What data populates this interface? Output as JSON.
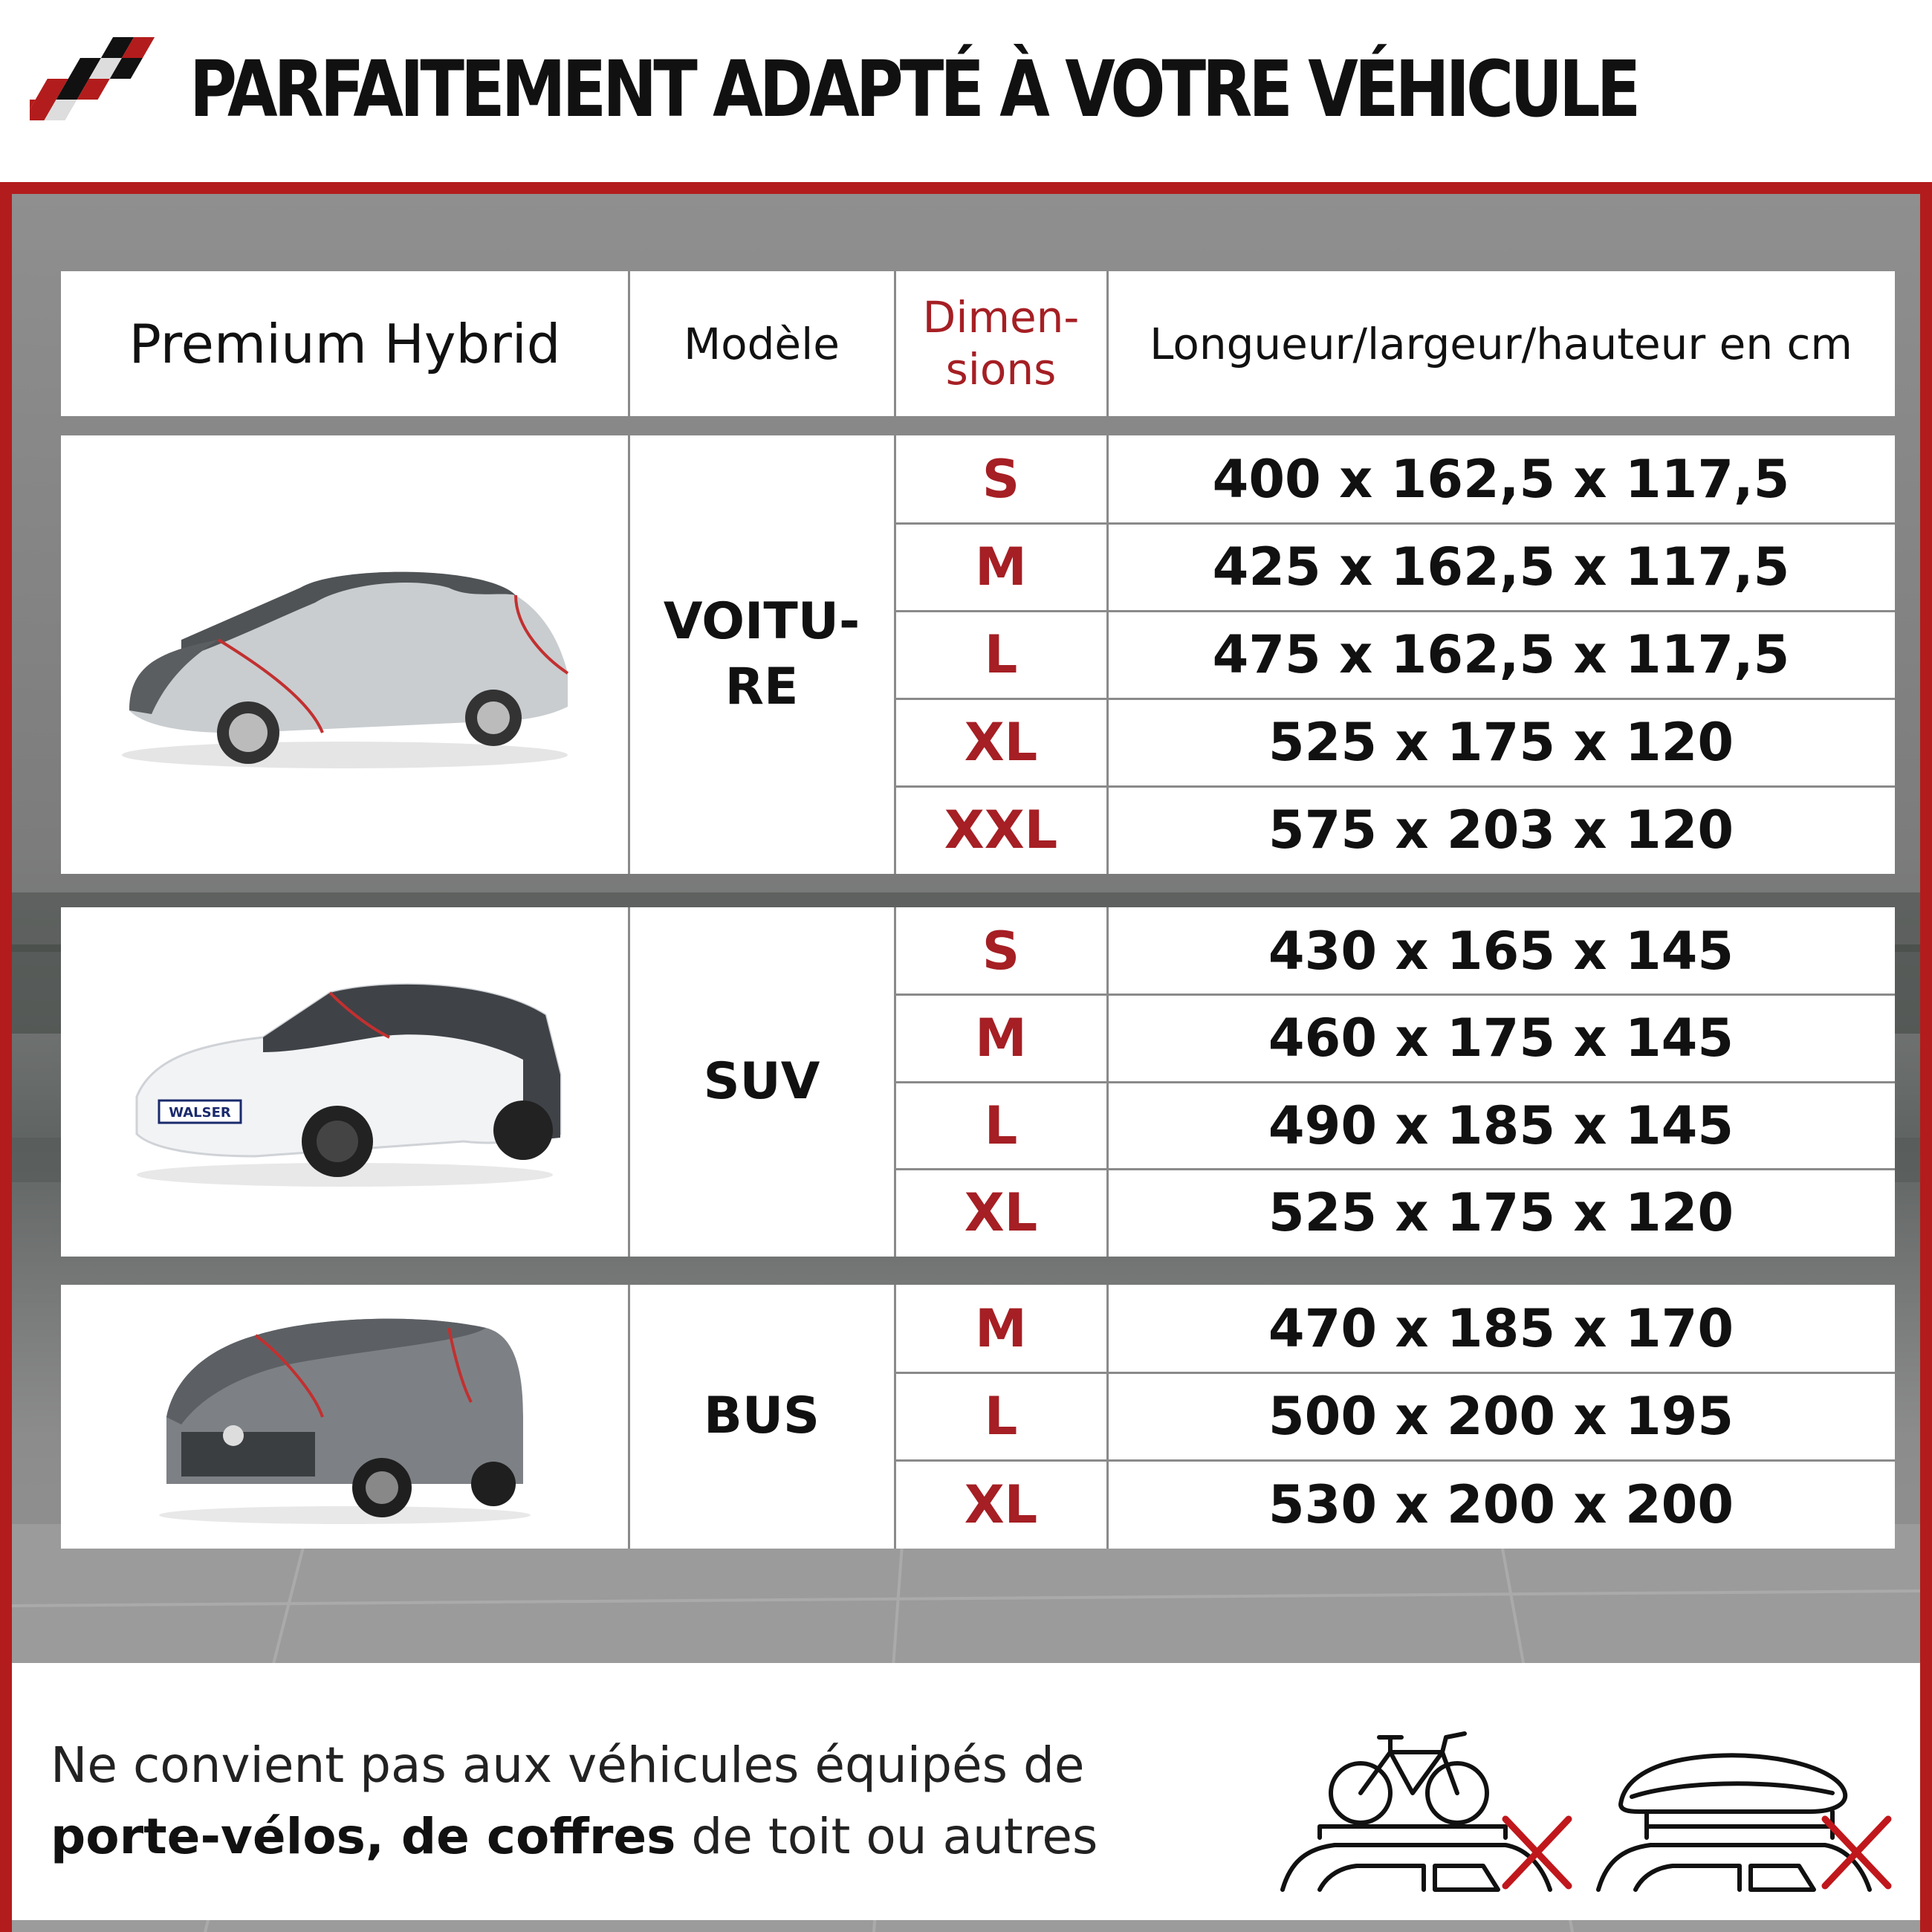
{
  "header": {
    "title": "PARFAITEMENT ADAPTÉ À VOTRE VÉHICULE",
    "brand_colors": {
      "red": "#b31c1c",
      "dark": "#111111"
    },
    "logo_icon": "checkered-flag-icon"
  },
  "table": {
    "header": {
      "product": "Premium Hybrid",
      "model": "Modèle",
      "dimensions_line1": "Dimen-",
      "dimensions_line2": "sions",
      "measure": "Longueur/largeur/hauteur en cm"
    },
    "groups": [
      {
        "model_line1": "VOITU-",
        "model_line2": "RE",
        "image_icon": "car-cover-sedan-icon",
        "rows": [
          {
            "size": "S",
            "value": "400 x 162,5 x 117,5"
          },
          {
            "size": "M",
            "value": "425 x 162,5 x 117,5"
          },
          {
            "size": "L",
            "value": "475 x 162,5 x 117,5"
          },
          {
            "size": "XL",
            "value": "525 x 175 x 120"
          },
          {
            "size": "XXL",
            "value": "575 x 203 x 120"
          }
        ]
      },
      {
        "model_line1": "SUV",
        "model_line2": "",
        "image_icon": "car-cover-suv-icon",
        "badge": "WALSER",
        "rows": [
          {
            "size": "S",
            "value": "430 x 165 x 145"
          },
          {
            "size": "M",
            "value": "460 x 175 x 145"
          },
          {
            "size": "L",
            "value": "490 x 185 x 145"
          },
          {
            "size": "XL",
            "value": "525 x 175 x 120"
          }
        ]
      },
      {
        "model_line1": "BUS",
        "model_line2": "",
        "image_icon": "car-cover-van-icon",
        "rows": [
          {
            "size": "M",
            "value": "470 x 185 x 170"
          },
          {
            "size": "L",
            "value": "500 x 200 x 195"
          },
          {
            "size": "XL",
            "value": "530 x 200 x 200"
          }
        ]
      }
    ]
  },
  "note": {
    "line1": "Ne convient pas aux véhicules équipés de",
    "line2_bold": "porte-vélos, de coffres",
    "line2_rest": " de toit ou autres",
    "icons": [
      "bike-rack-not-allowed-icon",
      "roof-box-not-allowed-icon"
    ]
  }
}
